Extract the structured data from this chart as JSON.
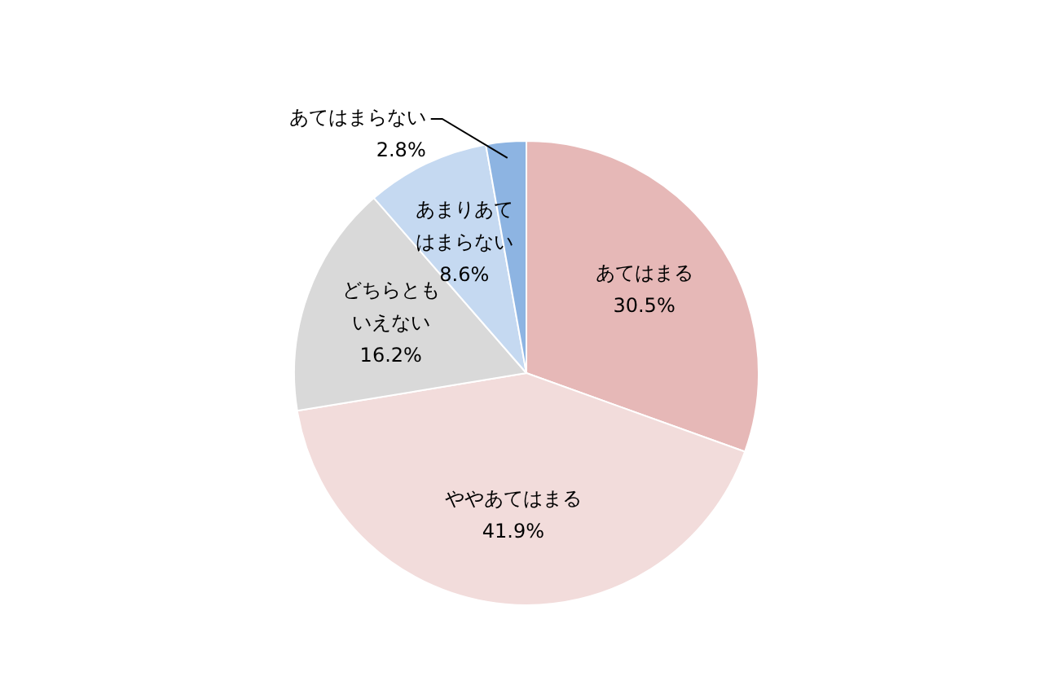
{
  "chart_data": {
    "type": "pie",
    "categories": [
      "あてはまる",
      "ややあてはまる",
      "どちらともいえない",
      "あまりあてはまらない",
      "あてはまらない"
    ],
    "values": [
      30.5,
      41.9,
      16.2,
      8.6,
      2.8
    ],
    "colors": [
      "#e6b8b7",
      "#f2dcdb",
      "#d9d9d9",
      "#c5d9f1",
      "#8db4e2"
    ],
    "value_labels": [
      "30.5%",
      "41.9%",
      "16.2%",
      "8.6%",
      "2.8%"
    ],
    "legend": false
  }
}
